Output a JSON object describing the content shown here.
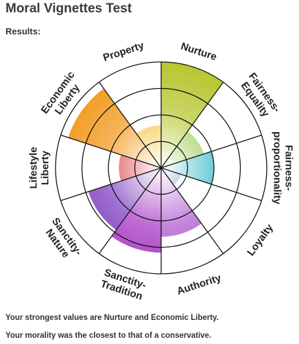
{
  "page": {
    "title": "Moral Vignettes Test",
    "results_label": "Results:",
    "summary_strongest": "Your strongest values are Nurture and Economic Liberty.",
    "summary_closest": "Your morality was the closest to that of a conservative."
  },
  "chart_data": {
    "type": "polar-area",
    "title": "",
    "rings": 4,
    "rmax": 4,
    "start_angle_deg": 0,
    "direction": "clockwise",
    "categories": [
      {
        "name": "Nurture",
        "label_lines": [
          "Nurture"
        ],
        "value": 4.0,
        "color": "#b7c630"
      },
      {
        "name": "Fairness-Equality",
        "label_lines": [
          "Fairness-",
          "Equality"
        ],
        "value": 1.7,
        "color": "#8cc63f"
      },
      {
        "name": "Fairness-proportionality",
        "label_lines": [
          "Fairness-",
          "proportionality"
        ],
        "value": 2.0,
        "color": "#2bb5c8"
      },
      {
        "name": "Loyalty",
        "label_lines": [
          "Loyalty"
        ],
        "value": 0.8,
        "color": "#2e6fb5"
      },
      {
        "name": "Authority",
        "label_lines": [
          "Authority"
        ],
        "value": 2.6,
        "color": "#b05fd0"
      },
      {
        "name": "Sanctity-Tradition",
        "label_lines": [
          "Sanctity-",
          "Tradition"
        ],
        "value": 3.2,
        "color": "#a83cc4"
      },
      {
        "name": "Sanctity-Nature",
        "label_lines": [
          "Sanctity-",
          "Nature"
        ],
        "value": 2.9,
        "color": "#7e3fc0"
      },
      {
        "name": "Lifestyle Liberty",
        "label_lines": [
          "Lifestyle",
          "Liberty"
        ],
        "value": 1.6,
        "color": "#d9242f"
      },
      {
        "name": "Economic Liberty",
        "label_lines": [
          "Economic",
          "Liberty"
        ],
        "value": 3.7,
        "color": "#f39a1e"
      },
      {
        "name": "Property",
        "label_lines": [
          "Property"
        ],
        "value": 1.6,
        "color": "#f6b81f"
      }
    ],
    "grid": true,
    "legend": "none"
  }
}
